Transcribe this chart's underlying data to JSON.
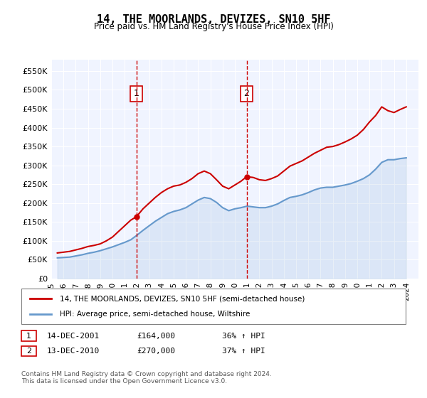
{
  "title": "14, THE MOORLANDS, DEVIZES, SN10 5HF",
  "subtitle": "Price paid vs. HM Land Registry's House Price Index (HPI)",
  "ylabel_ticks": [
    "£0",
    "£50K",
    "£100K",
    "£150K",
    "£200K",
    "£250K",
    "£300K",
    "£350K",
    "£400K",
    "£450K",
    "£500K",
    "£550K"
  ],
  "ytick_values": [
    0,
    50000,
    100000,
    150000,
    200000,
    250000,
    300000,
    350000,
    400000,
    450000,
    500000,
    550000
  ],
  "ylim": [
    0,
    580000
  ],
  "xlim_start": 1995.0,
  "xlim_end": 2025.0,
  "background_color": "#DDEEFF",
  "plot_bg": "#F0F4FF",
  "hpi_line_color": "#6699CC",
  "price_line_color": "#CC0000",
  "vline_color": "#CC0000",
  "marker1_x": 2001.96,
  "marker1_y": 500000,
  "marker1_label": "1",
  "marker2_x": 2010.96,
  "marker2_y": 500000,
  "marker2_label": "2",
  "sale1_date": "14-DEC-2001",
  "sale1_price": "£164,000",
  "sale1_hpi": "36% ↑ HPI",
  "sale2_date": "13-DEC-2010",
  "sale2_price": "£270,000",
  "sale2_hpi": "37% ↑ HPI",
  "legend_line1": "14, THE MOORLANDS, DEVIZES, SN10 5HF (semi-detached house)",
  "legend_line2": "HPI: Average price, semi-detached house, Wiltshire",
  "footer": "Contains HM Land Registry data © Crown copyright and database right 2024.\nThis data is licensed under the Open Government Licence v3.0.",
  "hpi_data_x": [
    1995.5,
    1996.0,
    1996.5,
    1997.0,
    1997.5,
    1998.0,
    1998.5,
    1999.0,
    1999.5,
    2000.0,
    2000.5,
    2001.0,
    2001.5,
    2002.0,
    2002.5,
    2003.0,
    2003.5,
    2004.0,
    2004.5,
    2005.0,
    2005.5,
    2006.0,
    2006.5,
    2007.0,
    2007.5,
    2008.0,
    2008.5,
    2009.0,
    2009.5,
    2010.0,
    2010.5,
    2011.0,
    2011.5,
    2012.0,
    2012.5,
    2013.0,
    2013.5,
    2014.0,
    2014.5,
    2015.0,
    2015.5,
    2016.0,
    2016.5,
    2017.0,
    2017.5,
    2018.0,
    2018.5,
    2019.0,
    2019.5,
    2020.0,
    2020.5,
    2021.0,
    2021.5,
    2022.0,
    2022.5,
    2023.0,
    2023.5,
    2024.0
  ],
  "hpi_data_y": [
    55000,
    56000,
    57000,
    60000,
    63000,
    67000,
    70000,
    74000,
    79000,
    84000,
    90000,
    96000,
    103000,
    115000,
    128000,
    140000,
    152000,
    162000,
    172000,
    178000,
    182000,
    188000,
    198000,
    208000,
    215000,
    212000,
    202000,
    188000,
    180000,
    185000,
    188000,
    192000,
    190000,
    188000,
    188000,
    192000,
    198000,
    207000,
    215000,
    218000,
    222000,
    228000,
    235000,
    240000,
    242000,
    242000,
    245000,
    248000,
    252000,
    258000,
    265000,
    275000,
    290000,
    308000,
    315000,
    315000,
    318000,
    320000
  ],
  "price_data_x": [
    1995.5,
    1996.0,
    1996.5,
    1997.0,
    1997.5,
    1998.0,
    1998.5,
    1999.0,
    1999.5,
    2000.0,
    2000.5,
    2001.0,
    2001.5,
    2001.96,
    2002.5,
    2003.0,
    2003.5,
    2004.0,
    2004.5,
    2005.0,
    2005.5,
    2006.0,
    2006.5,
    2007.0,
    2007.5,
    2008.0,
    2008.5,
    2009.0,
    2009.5,
    2010.0,
    2010.5,
    2010.96,
    2011.5,
    2012.0,
    2012.5,
    2013.0,
    2013.5,
    2014.0,
    2014.5,
    2015.0,
    2015.5,
    2016.0,
    2016.5,
    2017.0,
    2017.5,
    2018.0,
    2018.5,
    2019.0,
    2019.5,
    2020.0,
    2020.5,
    2021.0,
    2021.5,
    2022.0,
    2022.5,
    2023.0,
    2023.5,
    2024.0
  ],
  "price_data_y": [
    68000,
    70000,
    72000,
    76000,
    80000,
    85000,
    88000,
    92000,
    100000,
    110000,
    125000,
    140000,
    155000,
    164000,
    185000,
    200000,
    215000,
    228000,
    238000,
    245000,
    248000,
    255000,
    265000,
    278000,
    285000,
    278000,
    262000,
    245000,
    238000,
    248000,
    258000,
    270000,
    268000,
    262000,
    260000,
    265000,
    272000,
    285000,
    298000,
    305000,
    312000,
    322000,
    332000,
    340000,
    348000,
    350000,
    355000,
    362000,
    370000,
    380000,
    395000,
    415000,
    432000,
    455000,
    445000,
    440000,
    448000,
    455000
  ]
}
